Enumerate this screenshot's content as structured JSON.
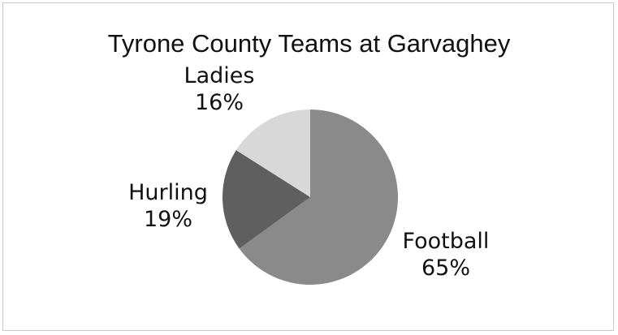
{
  "chart_data": {
    "type": "pie",
    "title": "Tyrone County Teams at Garvaghey",
    "slices": [
      {
        "label": "Football",
        "value": 65,
        "value_label": "65%",
        "color": "#8a8a8a"
      },
      {
        "label": "Hurling",
        "value": 19,
        "value_label": "19%",
        "color": "#5f5f5f"
      },
      {
        "label": "Ladies",
        "value": 16,
        "value_label": "16%",
        "color": "#d8d8d8"
      }
    ],
    "legend": "none",
    "start_angle": "12 o'clock, clockwise"
  }
}
